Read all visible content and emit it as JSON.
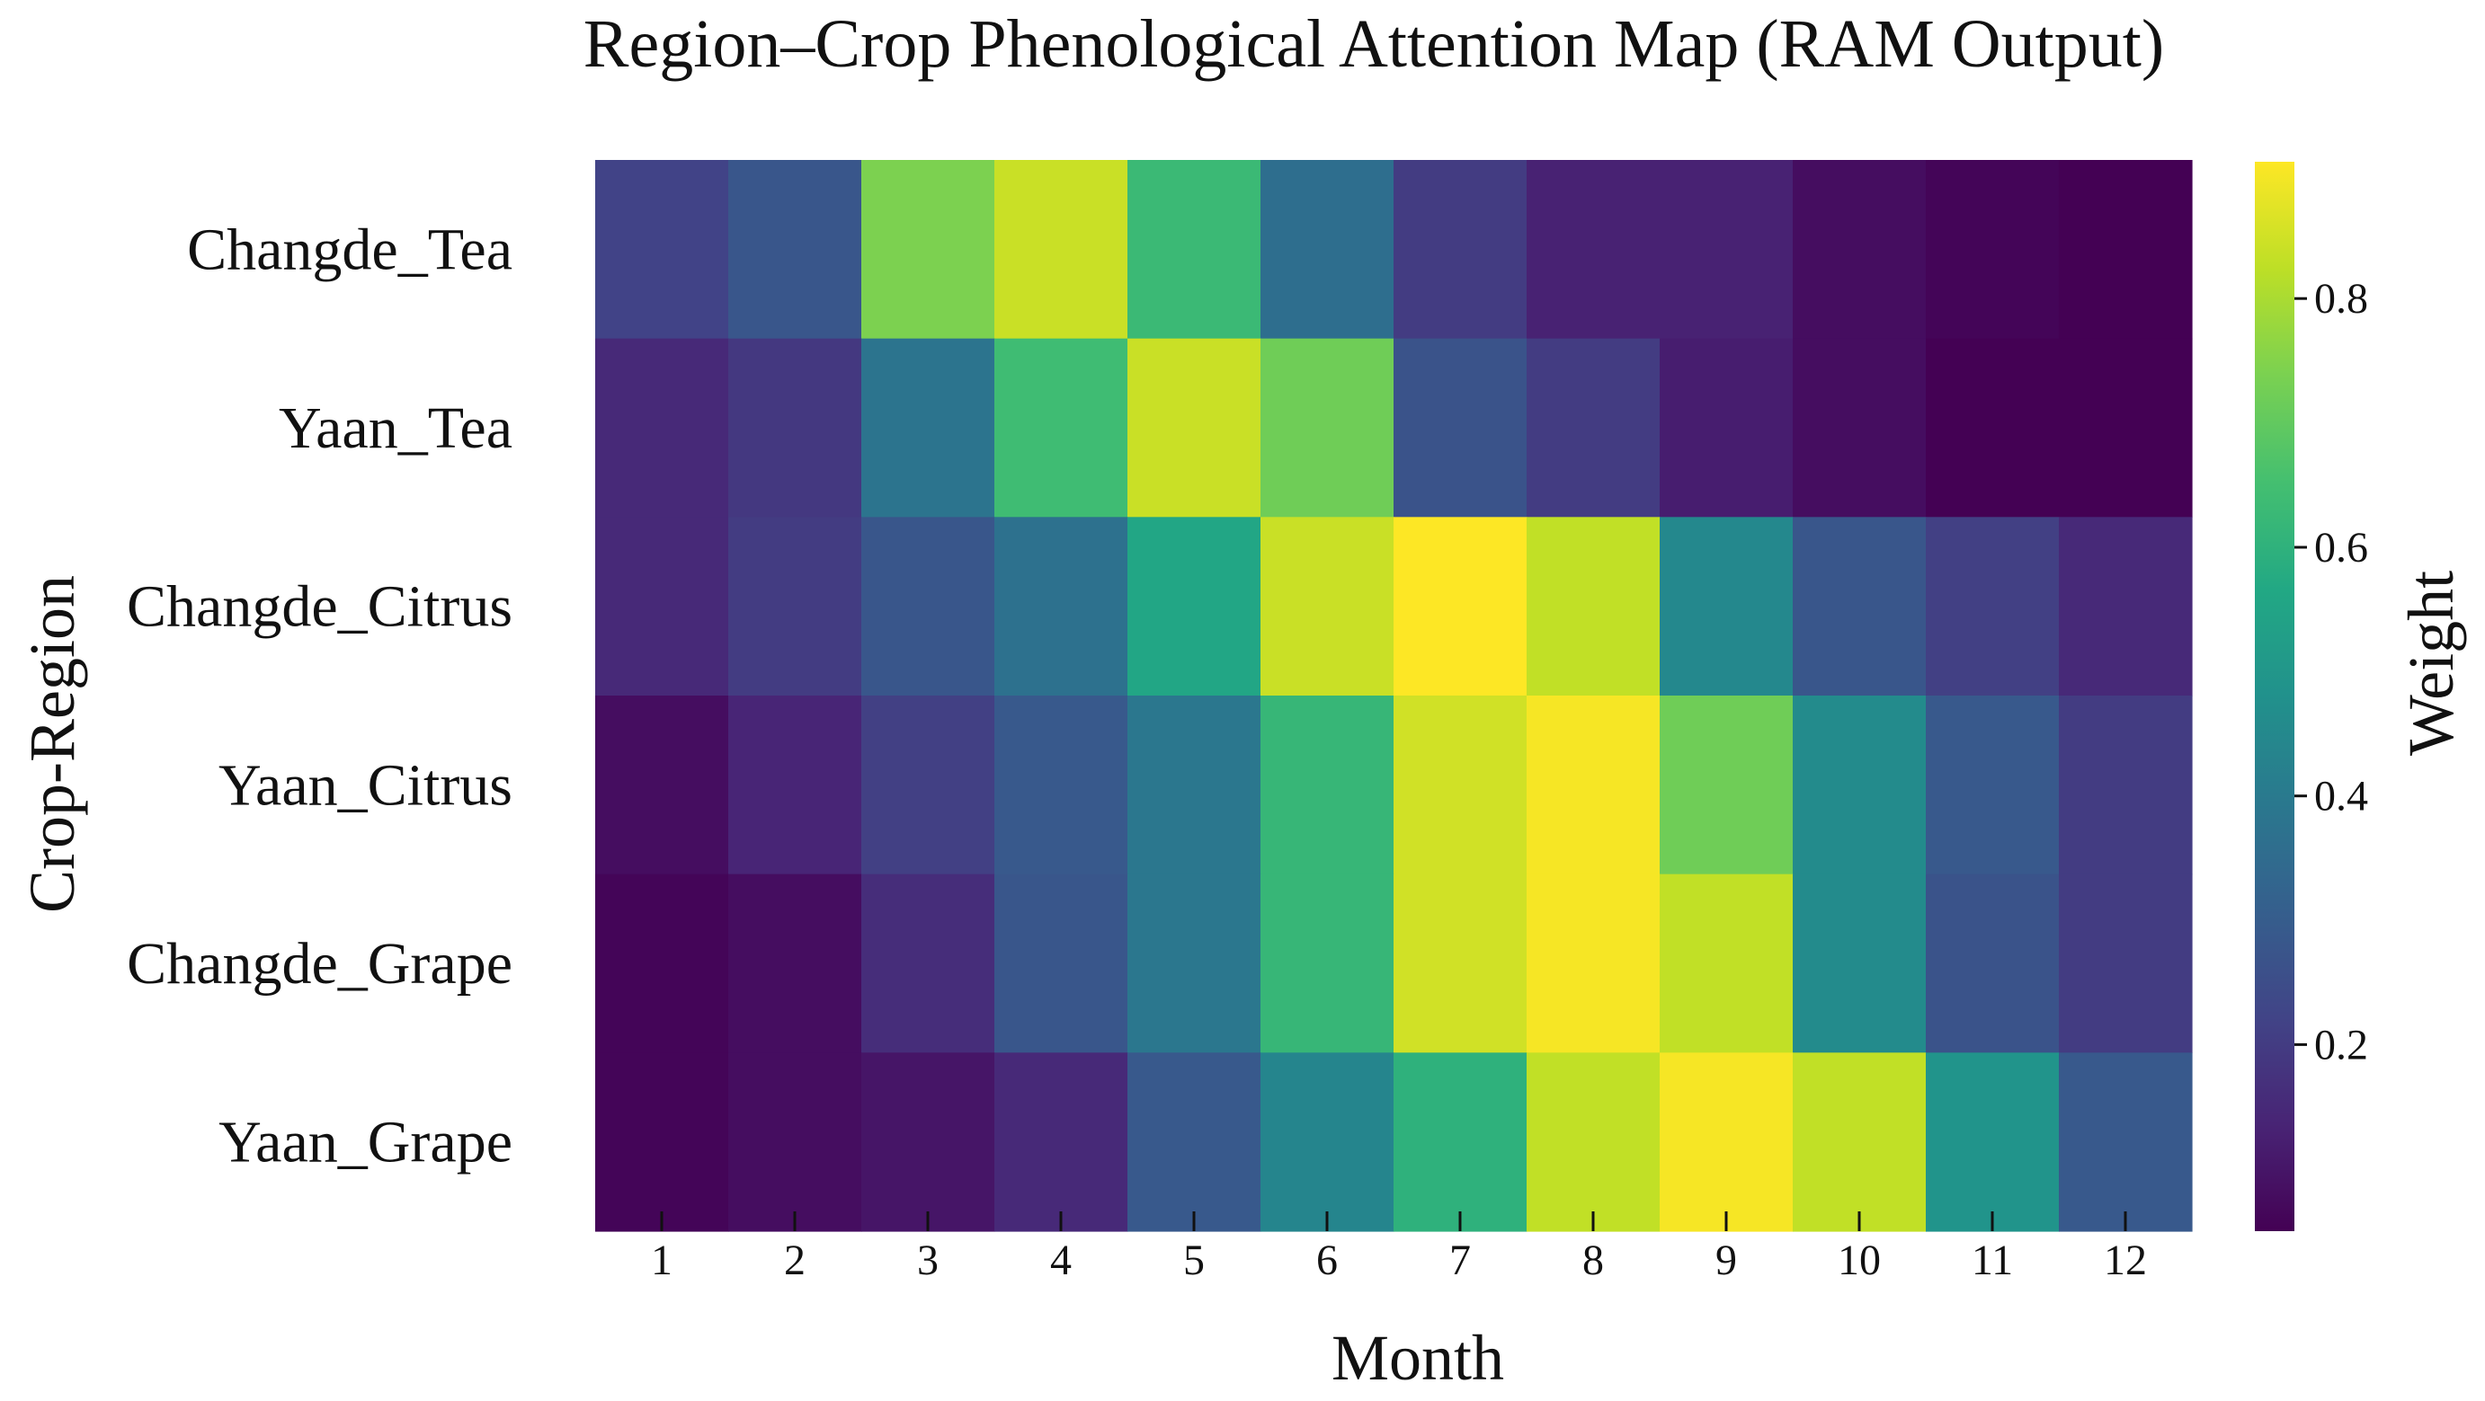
{
  "chart_data": {
    "type": "heatmap",
    "title": "Region–Crop Phenological Attention Map (RAM Output)",
    "xlabel": "Month",
    "ylabel": "Crop-Region",
    "x_categories": [
      "1",
      "2",
      "3",
      "4",
      "5",
      "6",
      "7",
      "8",
      "9",
      "10",
      "11",
      "12"
    ],
    "y_categories": [
      "Changde_Tea",
      "Yaan_Tea",
      "Changde_Citrus",
      "Yaan_Citrus",
      "Changde_Grape",
      "Yaan_Grape"
    ],
    "values": [
      [
        0.22,
        0.28,
        0.74,
        0.84,
        0.63,
        0.36,
        0.2,
        0.13,
        0.13,
        0.08,
        0.06,
        0.05
      ],
      [
        0.15,
        0.19,
        0.38,
        0.64,
        0.84,
        0.72,
        0.27,
        0.2,
        0.12,
        0.08,
        0.05,
        0.05
      ],
      [
        0.15,
        0.2,
        0.28,
        0.37,
        0.56,
        0.84,
        0.91,
        0.83,
        0.45,
        0.28,
        0.21,
        0.15
      ],
      [
        0.08,
        0.14,
        0.21,
        0.29,
        0.39,
        0.62,
        0.85,
        0.9,
        0.72,
        0.46,
        0.29,
        0.2
      ],
      [
        0.06,
        0.08,
        0.16,
        0.28,
        0.39,
        0.62,
        0.85,
        0.9,
        0.83,
        0.46,
        0.27,
        0.2
      ],
      [
        0.06,
        0.08,
        0.1,
        0.15,
        0.29,
        0.44,
        0.6,
        0.83,
        0.9,
        0.83,
        0.49,
        0.29
      ]
    ],
    "colormap": "viridis",
    "vmin": 0.05,
    "vmax": 0.91,
    "colorbar": {
      "label": "Weight",
      "ticks": [
        0.2,
        0.4,
        0.6,
        0.8
      ],
      "tick_labels": [
        "0.2",
        "0.4",
        "0.6",
        "0.8"
      ]
    },
    "grid": false,
    "legend": "colorbar right"
  }
}
